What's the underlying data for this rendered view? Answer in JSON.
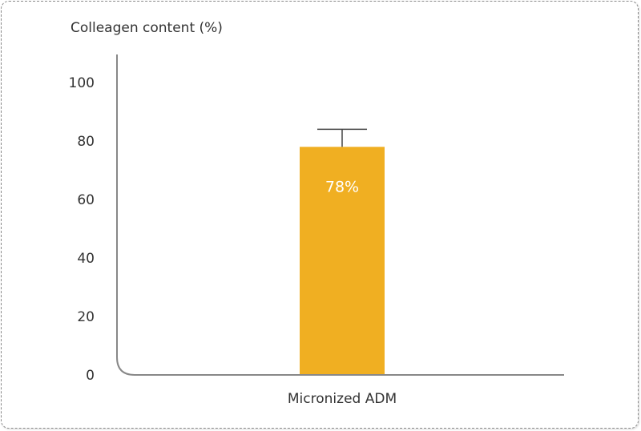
{
  "chart_data": {
    "type": "bar",
    "title": "",
    "ylabel": "Colleagen content (%)",
    "xlabel": "",
    "categories": [
      "Micronized ADM"
    ],
    "values": [
      78
    ],
    "error": [
      6
    ],
    "data_labels": [
      "78%"
    ],
    "ylim": [
      0,
      100
    ],
    "yticks": [
      "0",
      "20",
      "40",
      "60",
      "80",
      "100"
    ],
    "ytick_values": [
      0,
      20,
      40,
      60,
      80,
      100
    ],
    "bar_color": "#F0AF22",
    "axis_color": "#888888",
    "grid": false
  }
}
